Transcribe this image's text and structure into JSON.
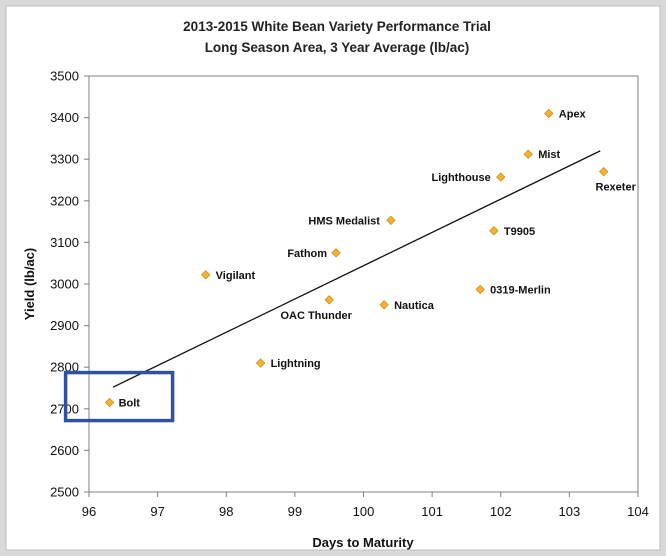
{
  "chart_data": {
    "type": "scatter",
    "title": "2013-2015 White Bean Variety Performance Trial",
    "subtitle": "Long Season Area, 3 Year Average (lb/ac)",
    "xlabel": "Days to Maturity",
    "ylabel": "Yield (lb/ac)",
    "xlim": [
      96,
      104
    ],
    "ylim": [
      2500,
      3500
    ],
    "xticks": [
      "96",
      "97",
      "98",
      "99",
      "100",
      "101",
      "102",
      "103",
      "104"
    ],
    "yticks": [
      "2500",
      "2600",
      "2700",
      "2800",
      "2900",
      "3000",
      "3100",
      "3200",
      "3300",
      "3400",
      "3500"
    ],
    "grid": false,
    "legend": "none",
    "marker_color": "#f2b233",
    "trendline": {
      "type": "linear",
      "x": [
        96.35,
        103.45
      ],
      "y": [
        2752,
        3320
      ]
    },
    "highlight": {
      "label": "Bolt",
      "color": "#2f52a0"
    },
    "points": [
      {
        "label": "Bolt",
        "x": 96.3,
        "y": 2715
      },
      {
        "label": "Vigilant",
        "x": 97.7,
        "y": 3022
      },
      {
        "label": "Lightning",
        "x": 98.5,
        "y": 2810
      },
      {
        "label": "OAC Thunder",
        "x": 99.5,
        "y": 2962
      },
      {
        "label": "Fathom",
        "x": 99.6,
        "y": 3075
      },
      {
        "label": "HMS Medalist",
        "x": 100.4,
        "y": 3153
      },
      {
        "label": "Nautica",
        "x": 100.3,
        "y": 2950
      },
      {
        "label": "0319-Merlin",
        "x": 101.7,
        "y": 2987
      },
      {
        "label": "T9905",
        "x": 101.9,
        "y": 3128
      },
      {
        "label": "Lighthouse",
        "x": 102.0,
        "y": 3257
      },
      {
        "label": "Mist",
        "x": 102.4,
        "y": 3312
      },
      {
        "label": "Apex",
        "x": 102.7,
        "y": 3410
      },
      {
        "label": "Rexeter",
        "x": 103.5,
        "y": 3270
      }
    ]
  }
}
